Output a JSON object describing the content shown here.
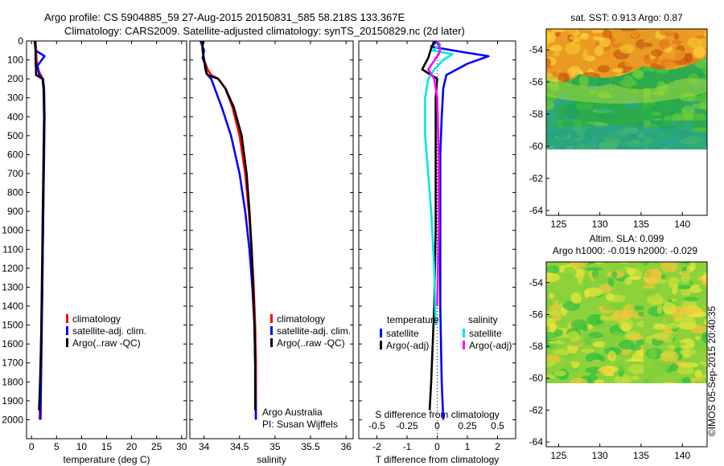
{
  "header": {
    "line1": "Argo profile: CS 5904885_59 27-Aug-2015 20150831_585 58.218S 133.367E",
    "line2": "Climatology: CARS2009. Satellite-adjusted climatology: synTS_20150829.nc (2d later)"
  },
  "side_stamp": "©IMOS 05-Sep-2015 20:40:35",
  "colors": {
    "climatology": "#ff0000",
    "satellite_adj": "#0000ff",
    "argo": "#000000",
    "satellite_salinity": "#00e5e5",
    "argo_salinity": "#ff00ff"
  },
  "legend_profile": [
    "climatology",
    "satellite-adj. clim.",
    "Argo(..raw -QC)"
  ],
  "legend_diff": {
    "temperature_header": "temperature",
    "salinity_header": "salinity",
    "items": [
      "satellite",
      "Argo(-adj)",
      "satellite",
      "Argo(-adj)"
    ]
  },
  "credits": [
    "Argo Australia",
    "PI: Susan Wijffels"
  ],
  "map_sst": {
    "title": "sat. SST: 0.913 Argo: 0.87"
  },
  "map_sla": {
    "title1": "Altim. SLA: 0.099",
    "title2": "Argo h1000: -0.019 h2000: -0.029"
  },
  "map_axes": {
    "xticks": [
      125,
      130,
      135,
      140
    ],
    "yticks": [
      -54,
      -56,
      -58,
      -60,
      -62,
      -64
    ]
  },
  "chart_data": [
    {
      "type": "line",
      "title": "",
      "xlabel": "temperature (deg C)",
      "ylabel": "",
      "xlim": [
        -1,
        31
      ],
      "ylim": [
        2100,
        0
      ],
      "xticks": [
        0,
        5,
        10,
        15,
        20,
        25,
        30
      ],
      "yticks": [
        0,
        100,
        200,
        300,
        400,
        500,
        600,
        700,
        800,
        900,
        1000,
        1100,
        1200,
        1300,
        1400,
        1500,
        1600,
        1700,
        1800,
        1900,
        2000
      ],
      "series": [
        {
          "name": "climatology",
          "color": "#ff0000",
          "points": [
            [
              0.8,
              0
            ],
            [
              0.9,
              50
            ],
            [
              1.0,
              100
            ],
            [
              1.3,
              150
            ],
            [
              2.2,
              200
            ],
            [
              2.4,
              250
            ],
            [
              2.5,
              300
            ],
            [
              2.5,
              400
            ],
            [
              2.5,
              600
            ],
            [
              2.4,
              800
            ],
            [
              2.3,
              1000
            ],
            [
              2.2,
              1200
            ],
            [
              2.1,
              1400
            ],
            [
              1.9,
              1600
            ],
            [
              1.8,
              1800
            ],
            [
              1.6,
              2000
            ]
          ]
        },
        {
          "name": "satellite-adj. clim.",
          "color": "#0000ff",
          "points": [
            [
              0.6,
              0
            ],
            [
              0.8,
              50
            ],
            [
              2.6,
              80
            ],
            [
              1.2,
              130
            ],
            [
              1.5,
              180
            ],
            [
              2.3,
              200
            ],
            [
              2.5,
              250
            ],
            [
              2.6,
              400
            ],
            [
              2.5,
              600
            ],
            [
              2.4,
              800
            ],
            [
              2.3,
              1000
            ],
            [
              2.2,
              1200
            ],
            [
              2.1,
              1400
            ],
            [
              2.0,
              1600
            ],
            [
              1.9,
              1800
            ],
            [
              1.8,
              2000
            ]
          ]
        },
        {
          "name": "Argo(..raw -QC)",
          "color": "#000000",
          "points": [
            [
              0.7,
              0
            ],
            [
              0.8,
              50
            ],
            [
              0.8,
              100
            ],
            [
              0.9,
              150
            ],
            [
              0.9,
              180
            ],
            [
              2.2,
              200
            ],
            [
              2.4,
              250
            ],
            [
              2.5,
              400
            ],
            [
              2.4,
              600
            ],
            [
              2.3,
              800
            ],
            [
              2.2,
              1000
            ],
            [
              2.1,
              1200
            ],
            [
              2.0,
              1400
            ],
            [
              1.9,
              1600
            ],
            [
              1.7,
              1800
            ],
            [
              1.5,
              1950
            ]
          ]
        }
      ]
    },
    {
      "type": "line",
      "title": "",
      "xlabel": "salinity",
      "ylabel": "",
      "xlim": [
        33.8,
        36.1
      ],
      "ylim": [
        2100,
        0
      ],
      "xticks": [
        34,
        34.5,
        35,
        35.5,
        36
      ],
      "series": [
        {
          "name": "climatology",
          "color": "#ff0000",
          "points": [
            [
              33.97,
              0
            ],
            [
              33.98,
              50
            ],
            [
              34.0,
              100
            ],
            [
              34.05,
              150
            ],
            [
              34.1,
              180
            ],
            [
              34.2,
              200
            ],
            [
              34.3,
              250
            ],
            [
              34.4,
              350
            ],
            [
              34.5,
              500
            ],
            [
              34.58,
              700
            ],
            [
              34.63,
              900
            ],
            [
              34.67,
              1100
            ],
            [
              34.7,
              1300
            ],
            [
              34.72,
              1500
            ],
            [
              34.73,
              1700
            ],
            [
              34.73,
              2000
            ]
          ]
        },
        {
          "name": "satellite-adj. clim.",
          "color": "#0000ff",
          "points": [
            [
              33.95,
              0
            ],
            [
              34.0,
              50
            ],
            [
              33.98,
              90
            ],
            [
              34.02,
              130
            ],
            [
              34.03,
              170
            ],
            [
              34.1,
              200
            ],
            [
              34.15,
              250
            ],
            [
              34.25,
              350
            ],
            [
              34.38,
              500
            ],
            [
              34.5,
              700
            ],
            [
              34.58,
              900
            ],
            [
              34.64,
              1100
            ],
            [
              34.68,
              1300
            ],
            [
              34.71,
              1500
            ],
            [
              34.72,
              1700
            ],
            [
              34.73,
              2000
            ]
          ]
        },
        {
          "name": "Argo(..raw -QC)",
          "color": "#000000",
          "points": [
            [
              33.98,
              0
            ],
            [
              33.98,
              50
            ],
            [
              34.0,
              100
            ],
            [
              34.02,
              150
            ],
            [
              34.05,
              180
            ],
            [
              34.2,
              200
            ],
            [
              34.3,
              250
            ],
            [
              34.42,
              350
            ],
            [
              34.53,
              500
            ],
            [
              34.6,
              700
            ],
            [
              34.64,
              900
            ],
            [
              34.67,
              1100
            ],
            [
              34.69,
              1300
            ],
            [
              34.71,
              1500
            ],
            [
              34.72,
              1700
            ],
            [
              34.72,
              1950
            ]
          ]
        }
      ]
    },
    {
      "type": "line",
      "title": "",
      "xlabel": "T difference from climatology",
      "xlabel_secondary": "S difference from climatology",
      "ylabel": "",
      "xlim": [
        -2.6,
        2.6
      ],
      "ylim": [
        2100,
        0
      ],
      "xticks": [
        -2,
        -1,
        0,
        1,
        2
      ],
      "xticks_salinity": [
        -0.5,
        -0.25,
        0,
        0.25,
        0.5
      ],
      "series": [
        {
          "name": "temperature satellite",
          "color": "#0000ff",
          "points": [
            [
              0.0,
              0
            ],
            [
              -0.2,
              30
            ],
            [
              0.9,
              60
            ],
            [
              1.7,
              80
            ],
            [
              1.0,
              120
            ],
            [
              0.3,
              180
            ],
            [
              0.2,
              250
            ],
            [
              0.15,
              400
            ],
            [
              0.1,
              600
            ],
            [
              0.1,
              1000
            ],
            [
              0.1,
              1400
            ],
            [
              0.15,
              1800
            ],
            [
              0.2,
              2000
            ]
          ]
        },
        {
          "name": "temperature Argo(-adj)",
          "color": "#000000",
          "points": [
            [
              -0.1,
              0
            ],
            [
              -0.2,
              40
            ],
            [
              -0.3,
              90
            ],
            [
              -0.4,
              120
            ],
            [
              -0.5,
              150
            ],
            [
              -0.2,
              180
            ],
            [
              0.0,
              200
            ],
            [
              -0.05,
              300
            ],
            [
              -0.05,
              600
            ],
            [
              -0.05,
              1000
            ],
            [
              -0.1,
              1400
            ],
            [
              -0.2,
              1800
            ],
            [
              -0.25,
              1950
            ]
          ]
        },
        {
          "name": "salinity satellite",
          "color": "#00e5e5",
          "points": [
            [
              0.0,
              0
            ],
            [
              0.1,
              20
            ],
            [
              -0.15,
              50
            ],
            [
              0.5,
              70
            ],
            [
              0.2,
              100
            ],
            [
              -0.1,
              150
            ],
            [
              -0.3,
              200
            ],
            [
              -0.4,
              300
            ],
            [
              -0.4,
              500
            ],
            [
              -0.3,
              700
            ],
            [
              -0.2,
              900
            ],
            [
              -0.1,
              1200
            ],
            [
              -0.05,
              1500
            ]
          ]
        },
        {
          "name": "salinity Argo(-adj)",
          "color": "#ff00ff",
          "points": [
            [
              0.0,
              0
            ],
            [
              0.1,
              40
            ],
            [
              0.05,
              70
            ],
            [
              -0.3,
              150
            ],
            [
              -0.1,
              200
            ],
            [
              0.0,
              300
            ],
            [
              0.05,
              600
            ],
            [
              0.05,
              1000
            ],
            [
              0.0,
              1400
            ]
          ]
        }
      ]
    }
  ]
}
